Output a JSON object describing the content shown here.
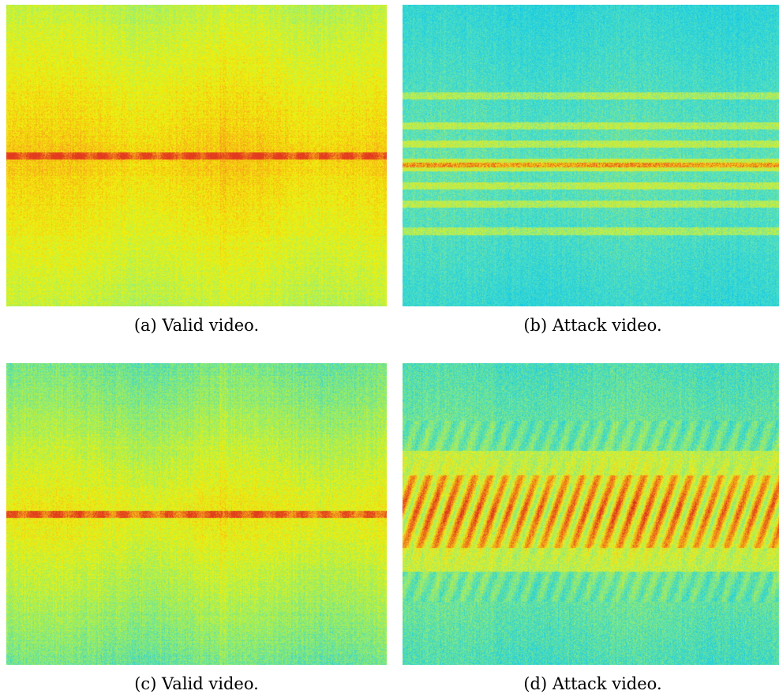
{
  "figure": {
    "panels": [
      {
        "id": "a",
        "caption": "(a) Valid video.",
        "intensity": "high",
        "band": "thin-dotted",
        "colors": [
          "#3fd6d8",
          "#9ef06a",
          "#f2f20a",
          "#f7a21a",
          "#e23a1e"
        ]
      },
      {
        "id": "b",
        "caption": "(b) Attack video.",
        "intensity": "low",
        "band": "thin-with-horizontal-stripes",
        "colors": [
          "#10c8e8",
          "#55e0c0",
          "#c8f040",
          "#f2d41a",
          "#e0301a"
        ]
      },
      {
        "id": "c",
        "caption": "(c) Valid video.",
        "intensity": "medium",
        "band": "thin-dotted",
        "colors": [
          "#30d0d8",
          "#90ec70",
          "#eef20e",
          "#f5a81c",
          "#e03c1c"
        ]
      },
      {
        "id": "d",
        "caption": "(d) Attack video.",
        "intensity": "low-to-medium",
        "band": "wide-diagonal-comb",
        "colors": [
          "#1ccce4",
          "#7ee88a",
          "#e8f020",
          "#f29a1a",
          "#d82a1a"
        ]
      }
    ]
  }
}
